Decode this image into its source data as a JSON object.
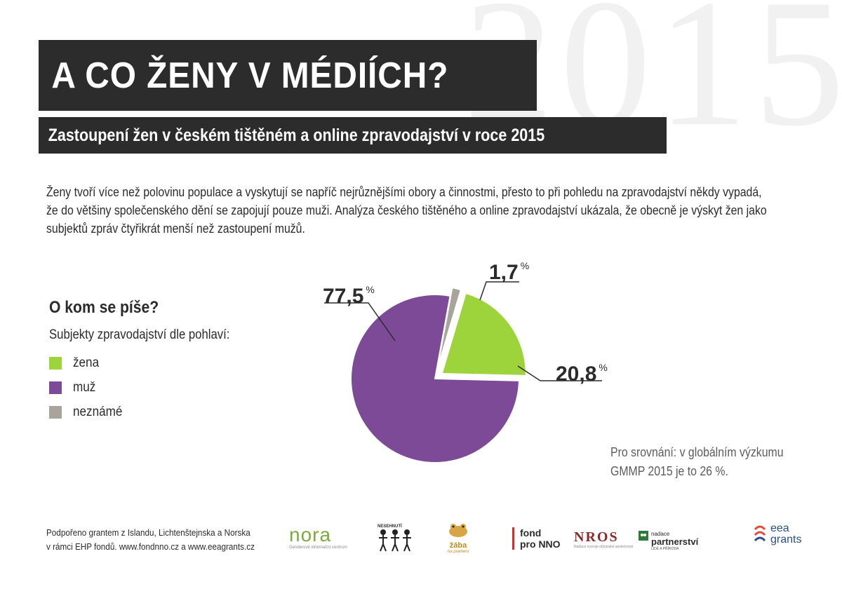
{
  "header": {
    "title": "A CO ŽENY V MÉDIÍCH?",
    "subtitle": "Zastoupení žen v českém tištěném a online zpravodajství v roce 2015",
    "watermark_year": "2015"
  },
  "intro_lines": [
    "Ženy tvoří více než polovinu populace a vyskytují se napříč nejrůznějšími obory a činnostmi, přesto to při pohledu na zpravodajství někdy vypadá,",
    "že do většiny společenského dění se zapojují pouze muži. Analýza českého tištěného a online zpravodajství ukázala, že obecně je výskyt žen jako",
    "subjektů zpráv čtyřikrát menší než zastoupení mužů."
  ],
  "legend": {
    "title": "O kom se píše?",
    "subtitle": "Subjekty zpravodajství dle pohlaví:",
    "items": [
      {
        "label": "žena",
        "color": "#9dd33b"
      },
      {
        "label": "muž",
        "color": "#7c4a97"
      },
      {
        "label": "neznámé",
        "color": "#a8a39b"
      }
    ]
  },
  "chart_data": {
    "type": "pie",
    "categories": [
      "žena",
      "muž",
      "neznámé"
    ],
    "values": [
      20.8,
      77.5,
      1.7
    ],
    "value_labels": [
      "20,8",
      "77,5",
      "1,7"
    ],
    "unit": "%",
    "colors": [
      "#9dd33b",
      "#7c4a97",
      "#a8a39b"
    ],
    "exploded": [
      "žena",
      "neznámé"
    ]
  },
  "comparison": {
    "line1": "Pro srovnání: v globálním výzkumu",
    "line2": "GMMP 2015 je to 26 %."
  },
  "footer": {
    "line1": "Podpořeno grantem z Islandu, Lichtenštejnska a Norska",
    "line2": "v rámci EHP fondů. www.fondnno.cz a www.eeagrants.cz"
  },
  "logos": {
    "nora": "nora",
    "nora_sub": "Genderové informační centrum",
    "nesehnuti": "NESEHNUTÍ",
    "zaba": "žába",
    "zaba_sub": "na prameni",
    "fond_line1": "fond",
    "fond_line2": "pro NNO",
    "nros": "NROS",
    "nros_sub": "Nadace rozvoje občanské společnosti",
    "partnerstvi_line1": "nadace",
    "partnerstvi_line2": "partnerství",
    "partnerstvi_sub": "LIDÉ A PŘÍRODA",
    "eea_line1": "eea",
    "eea_line2": "grants"
  }
}
